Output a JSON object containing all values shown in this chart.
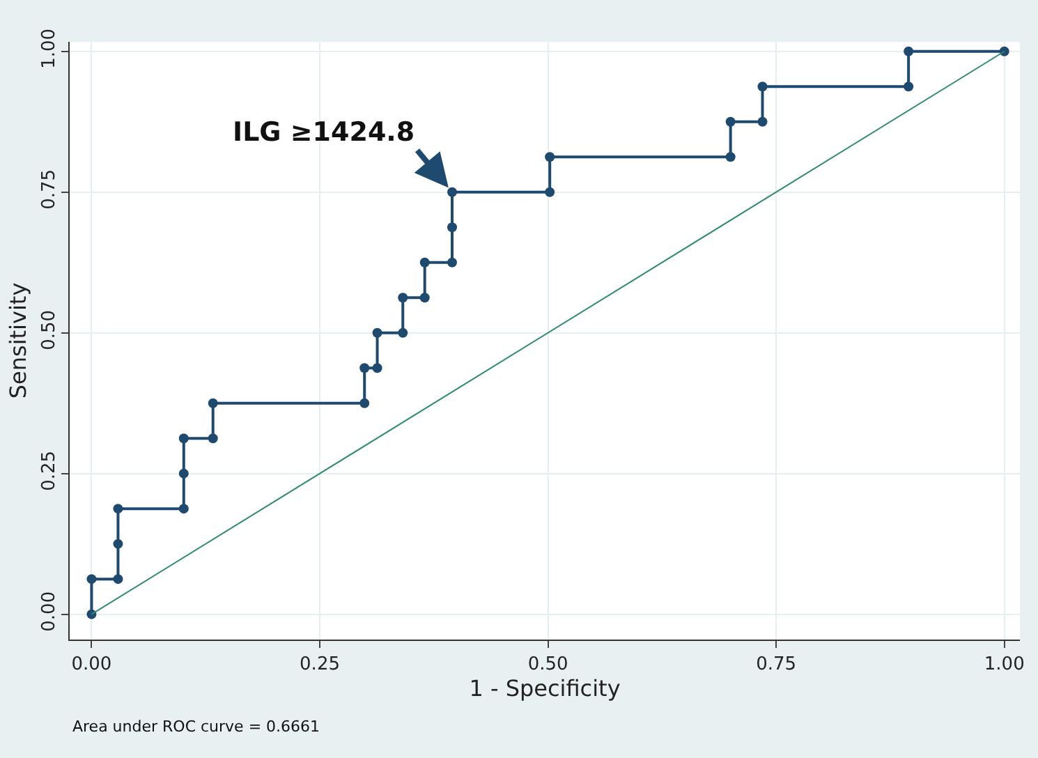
{
  "chart_data": {
    "type": "step",
    "xlabel": "1 - Specificity",
    "ylabel": "Sensitivity",
    "xlim": [
      -0.024,
      1.017
    ],
    "ylim": [
      -0.045,
      1.017
    ],
    "xticks": [
      {
        "value": 0,
        "label": "0.00"
      },
      {
        "value": 0.25,
        "label": "0.25"
      },
      {
        "value": 0.5,
        "label": "0.50"
      },
      {
        "value": 0.75,
        "label": "0.75"
      },
      {
        "value": 1,
        "label": "1.00"
      }
    ],
    "yticks": [
      {
        "value": 0,
        "label": "0.00"
      },
      {
        "value": 0.25,
        "label": "0.25"
      },
      {
        "value": 0.5,
        "label": "0.50"
      },
      {
        "value": 0.75,
        "label": "0.75"
      },
      {
        "value": 1,
        "label": "1.00"
      }
    ],
    "grid": true,
    "marker": "circle",
    "series": [
      {
        "color": "#1f4a70",
        "x": [
          0,
          0,
          0.029,
          0.029,
          0.029,
          0.101,
          0.101,
          0.101,
          0.133,
          0.133,
          0.299,
          0.299,
          0.313,
          0.313,
          0.341,
          0.341,
          0.365,
          0.365,
          0.395,
          0.395,
          0.395,
          0.502,
          0.502,
          0.7,
          0.7,
          0.735,
          0.735,
          0.895,
          0.895,
          1
        ],
        "values": [
          0,
          0.0625,
          0.0625,
          0.125,
          0.1875,
          0.1875,
          0.25,
          0.3125,
          0.3125,
          0.375,
          0.375,
          0.4375,
          0.4375,
          0.5,
          0.5,
          0.5625,
          0.5625,
          0.625,
          0.625,
          0.6875,
          0.75,
          0.75,
          0.8125,
          0.8125,
          0.875,
          0.875,
          0.9375,
          0.9375,
          1,
          1
        ]
      },
      {
        "type": "line",
        "color": "#2e8b72",
        "marker": "none",
        "x": [
          0,
          1
        ],
        "values": [
          0,
          1
        ]
      }
    ],
    "annotations": [
      {
        "text": "ILG ≥1424.8",
        "x": 0.395,
        "y": 0.75
      },
      "Area under ROC curve = 0.6661"
    ]
  }
}
